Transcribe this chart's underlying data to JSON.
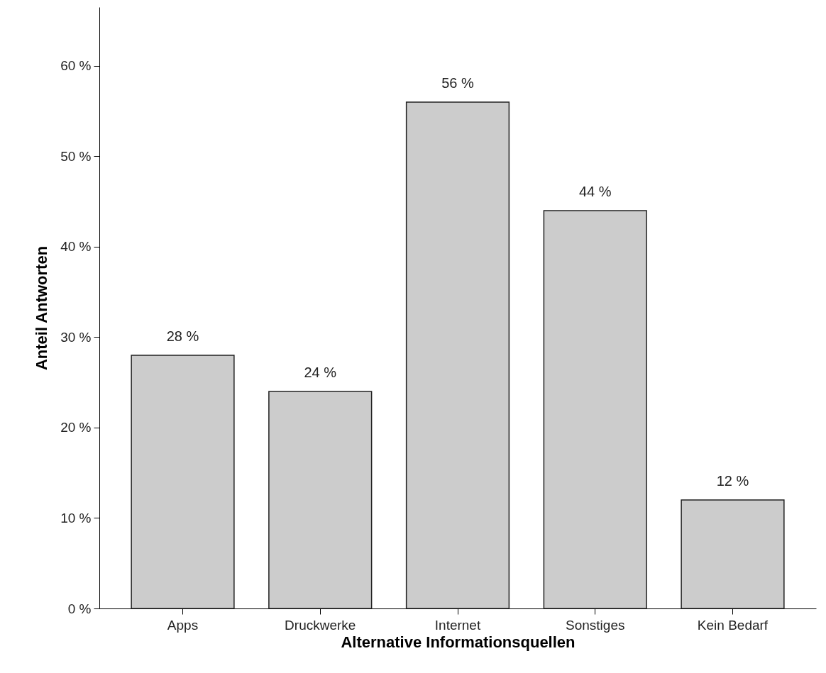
{
  "chart_data": {
    "type": "bar",
    "xlabel": "Alternative Informationsquellen",
    "ylabel": "Anteil Antworten",
    "categories": [
      "Apps",
      "Druckwerke",
      "Internet",
      "Sonstiges",
      "Kein Bedarf"
    ],
    "values": [
      28,
      24,
      56,
      44,
      12
    ],
    "value_labels": [
      "28 %",
      "24 %",
      "56 %",
      "44 %",
      "12 %"
    ],
    "color": "#cccccc",
    "ylim": [
      0,
      66.5
    ],
    "yticks": [
      {
        "value": 0,
        "label": "0 %"
      },
      {
        "value": 10,
        "label": "10 %"
      },
      {
        "value": 20,
        "label": "20 %"
      },
      {
        "value": 30,
        "label": "30 %"
      },
      {
        "value": 40,
        "label": "40 %"
      },
      {
        "value": 50,
        "label": "50 %"
      },
      {
        "value": 60,
        "label": "60 %"
      }
    ],
    "grid": false
  }
}
